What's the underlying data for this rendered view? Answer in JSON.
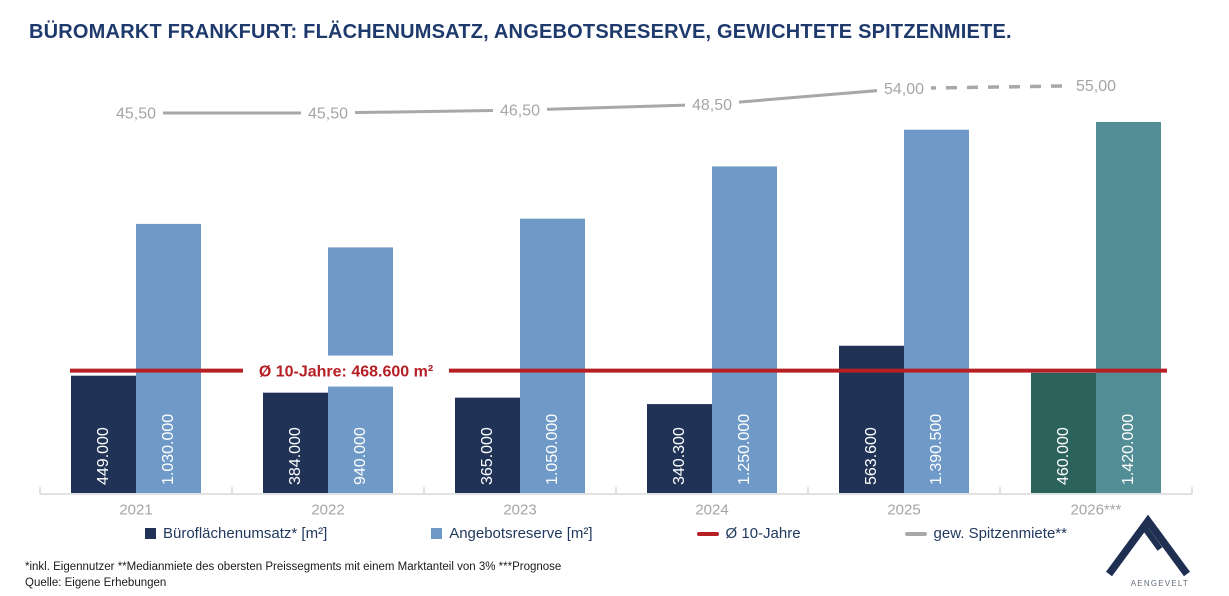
{
  "title": "BÜROMARKT FRANKFURT: FLÄCHENUMSATZ, ANGEBOTSRESERVE, GEWICHTETE SPITZENMIETE.",
  "chart_data": {
    "type": "bar",
    "categories": [
      "2021",
      "2022",
      "2023",
      "2024",
      "2025",
      "2026***"
    ],
    "forecast_category_index": 5,
    "bar_series": [
      {
        "name": "Büroflächenumsatz* [m²]",
        "values": [
          449000,
          384000,
          365000,
          340300,
          563600,
          460000
        ],
        "labels": [
          "449.000",
          "384.000",
          "365.000",
          "340.300",
          "563.600",
          "460.000"
        ],
        "color": "#203356",
        "forecast_color": "#2b635c"
      },
      {
        "name": "Angebotsreserve [m²]",
        "values": [
          1030000,
          940000,
          1050000,
          1250000,
          1390500,
          1420000
        ],
        "labels": [
          "1.030.000",
          "940.000",
          "1.050.000",
          "1.250.000",
          "1.390.500",
          "1.420.000"
        ],
        "color": "#6f9ac8",
        "forecast_color": "#538d96"
      }
    ],
    "line_series": {
      "name": "gew. Spitzenmiete**",
      "values": [
        45.5,
        45.5,
        46.5,
        48.5,
        54.0,
        55.0
      ],
      "labels": [
        "45,50",
        "45,50",
        "46,50",
        "48,50",
        "54,00",
        "55,00"
      ],
      "color": "#a8a8a8",
      "dashed_from_index": 4
    },
    "average_line": {
      "value": 468600,
      "label": "Ø 10-Jahre: 468.600 m²",
      "color": "#b62025"
    },
    "ylim": [
      0,
      1420000
    ],
    "grid": false,
    "legend_position": "bottom"
  },
  "legend": {
    "items": [
      {
        "label": "Büroflächenumsatz* [m²]",
        "marker": "square",
        "color": "#203356"
      },
      {
        "label": "Angebotsreserve [m²]",
        "marker": "square",
        "color": "#6f9ac8"
      },
      {
        "label": "Ø 10-Jahre",
        "marker": "line",
        "color": "#b62025"
      },
      {
        "label": "gew. Spitzenmiete**",
        "marker": "line",
        "color": "#a8a8a8"
      }
    ]
  },
  "footnotes": {
    "line1": "*inkl. Eigennutzer **Medianmiete des obersten Preissegments mit einem Marktanteil von 3% ***Prognose",
    "line2": "Quelle: Eigene Erhebungen"
  },
  "logo": {
    "text": "AENGEVELT"
  }
}
